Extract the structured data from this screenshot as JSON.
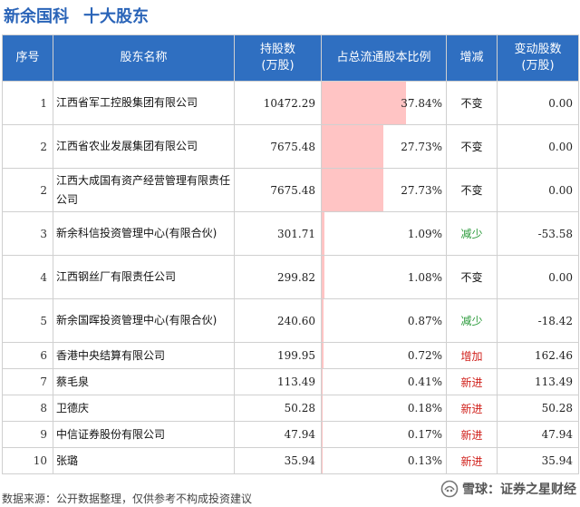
{
  "header": {
    "company": "新余国科",
    "subtitle": "十大股东"
  },
  "table": {
    "columns": {
      "rank": "序号",
      "name": "股东名称",
      "shares_line1": "持股数",
      "shares_line2": "(万股)",
      "ratio": "占总流通股本比例",
      "change": "增减",
      "delta_line1": "变动股数",
      "delta_line2": "(万股)"
    },
    "rows": [
      {
        "rank": "1",
        "name": "江西省军工控股集团有限公司",
        "shares": "10472.29",
        "ratio": "37.84%",
        "ratio_value": 37.84,
        "change": "不变",
        "change_type": "none",
        "delta": "0.00"
      },
      {
        "rank": "2",
        "name": "江西省农业发展集团有限公司",
        "shares": "7675.48",
        "ratio": "27.73%",
        "ratio_value": 27.73,
        "change": "不变",
        "change_type": "none",
        "delta": "0.00"
      },
      {
        "rank": "2",
        "name": "江西大成国有资产经营管理有限责任公司",
        "shares": "7675.48",
        "ratio": "27.73%",
        "ratio_value": 27.73,
        "change": "不变",
        "change_type": "none",
        "delta": "0.00"
      },
      {
        "rank": "3",
        "name": "新余科信投资管理中心(有限合伙)",
        "shares": "301.71",
        "ratio": "1.09%",
        "ratio_value": 1.09,
        "change": "减少",
        "change_type": "down",
        "delta": "-53.58"
      },
      {
        "rank": "4",
        "name": "江西钢丝厂有限责任公司",
        "shares": "299.82",
        "ratio": "1.08%",
        "ratio_value": 1.08,
        "change": "不变",
        "change_type": "none",
        "delta": "0.00"
      },
      {
        "rank": "5",
        "name": "新余国晖投资管理中心(有限合伙)",
        "shares": "240.60",
        "ratio": "0.87%",
        "ratio_value": 0.87,
        "change": "减少",
        "change_type": "down",
        "delta": "-18.42"
      },
      {
        "rank": "6",
        "name": "香港中央结算有限公司",
        "shares": "199.95",
        "ratio": "0.72%",
        "ratio_value": 0.72,
        "change": "增加",
        "change_type": "up",
        "delta": "162.46"
      },
      {
        "rank": "7",
        "name": "蔡毛泉",
        "shares": "113.49",
        "ratio": "0.41%",
        "ratio_value": 0.41,
        "change": "新进",
        "change_type": "new",
        "delta": "113.49"
      },
      {
        "rank": "8",
        "name": "卫德庆",
        "shares": "50.28",
        "ratio": "0.18%",
        "ratio_value": 0.18,
        "change": "新进",
        "change_type": "new",
        "delta": "50.28"
      },
      {
        "rank": "9",
        "name": "中信证券股份有限公司",
        "shares": "47.94",
        "ratio": "0.17%",
        "ratio_value": 0.17,
        "change": "新进",
        "change_type": "new",
        "delta": "47.94"
      },
      {
        "rank": "10",
        "name": "张璐",
        "shares": "35.94",
        "ratio": "0.13%",
        "ratio_value": 0.13,
        "change": "新进",
        "change_type": "new",
        "delta": "35.94"
      }
    ]
  },
  "footer": {
    "source": "数据来源：公开数据整理，仅供参考不构成投资建议",
    "brand": "雪球：证券之星财经"
  },
  "colors": {
    "header_bg": "#2f6fc1",
    "title": "#2a64b8",
    "ratio_bar": "#ffc4c4",
    "down": "#2a9a3a",
    "up": "#d0201b"
  },
  "icons": {
    "brand": "snowball-icon"
  }
}
